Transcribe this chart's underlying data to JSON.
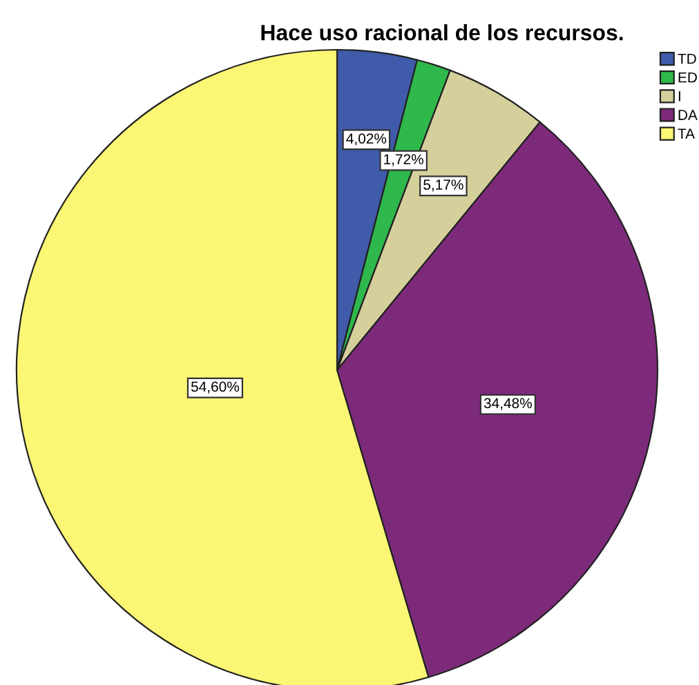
{
  "chart_data": {
    "type": "pie",
    "title": "Hace uso racional de los recursos.",
    "categories": [
      "TD",
      "ED",
      "I",
      "DA",
      "TA"
    ],
    "values": [
      4.02,
      1.72,
      5.17,
      34.48,
      54.6
    ],
    "colors": [
      "#3f5ba9",
      "#2fb84b",
      "#d5cf9c",
      "#7d2a7b",
      "#fbf674"
    ],
    "value_labels": [
      "4,02%",
      "1,72%",
      "5,17%",
      "34,48%",
      "54,60%"
    ],
    "legend": "top right"
  }
}
